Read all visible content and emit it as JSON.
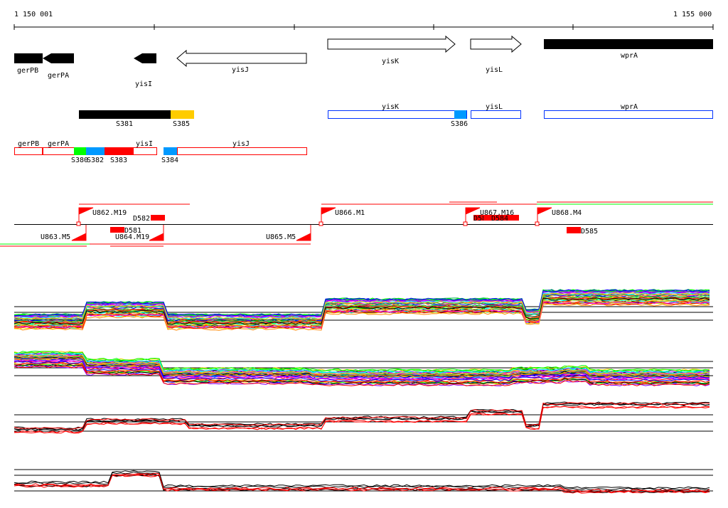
{
  "ruler": {
    "start_label": "1 150 001",
    "end_label": "1 155 000"
  },
  "genes": {
    "gerPB": "gerPB",
    "gerPA": "gerPA",
    "yisI": "yisI",
    "yisJ": "yisJ",
    "yisK": "yisK",
    "yisL": "yisL",
    "wprA": "wprA"
  },
  "segments_top": {
    "S381": "S381",
    "S385": "S385",
    "S386": "S386",
    "yisK": "yisK",
    "yisL": "yisL",
    "wprA": "wprA"
  },
  "segments_bottom": {
    "gerPB": "gerPB",
    "gerPA": "gerPA",
    "yisI": "yisI",
    "yisJ": "yisJ",
    "S380": "S380",
    "S382": "S382",
    "S383": "S383",
    "S384": "S384"
  },
  "features": {
    "U862": "U862.M19",
    "U863": "U863.M5",
    "U864": "U864.M19",
    "U865": "U865.M5",
    "U866": "U866.M1",
    "U867": "U867.M16",
    "U868": "U868.M4",
    "D581": "D581",
    "D582": "D582",
    "D583": "D583",
    "D584": "D584",
    "D585": "D585"
  },
  "colors": {
    "black": "#000000",
    "red": "#ff0000",
    "green": "#00ff00",
    "blue": "#0099ff",
    "yellow": "#ffcc00"
  }
}
